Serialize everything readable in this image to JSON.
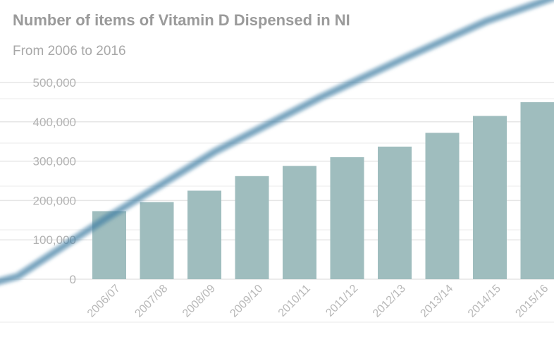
{
  "chart_data": {
    "type": "bar",
    "title": "Number of items of Vitamin D Dispensed in NI",
    "subtitle": "From 2006 to 2016",
    "xlabel": "",
    "ylabel": "",
    "categories": [
      "2006/07",
      "2007/08",
      "2008/09",
      "2009/10",
      "2010/11",
      "2011/12",
      "2012/13",
      "2013/14",
      "2014/15",
      "2015/16"
    ],
    "values": [
      173000,
      196000,
      225000,
      262000,
      288000,
      310000,
      337000,
      372000,
      415000,
      450000
    ],
    "ylim": [
      0,
      500000
    ],
    "yticks": [
      0,
      100000,
      200000,
      300000,
      400000,
      500000
    ],
    "ytick_labels": [
      "0",
      "100,000",
      "200,000",
      "300,000",
      "400,000",
      "500,000"
    ],
    "grid": true,
    "colors": {
      "bar": "#9fbdbe",
      "trend_line": "#3f7fa3",
      "gridline": "#e6e6e6",
      "title": "#9a9a9a"
    }
  }
}
